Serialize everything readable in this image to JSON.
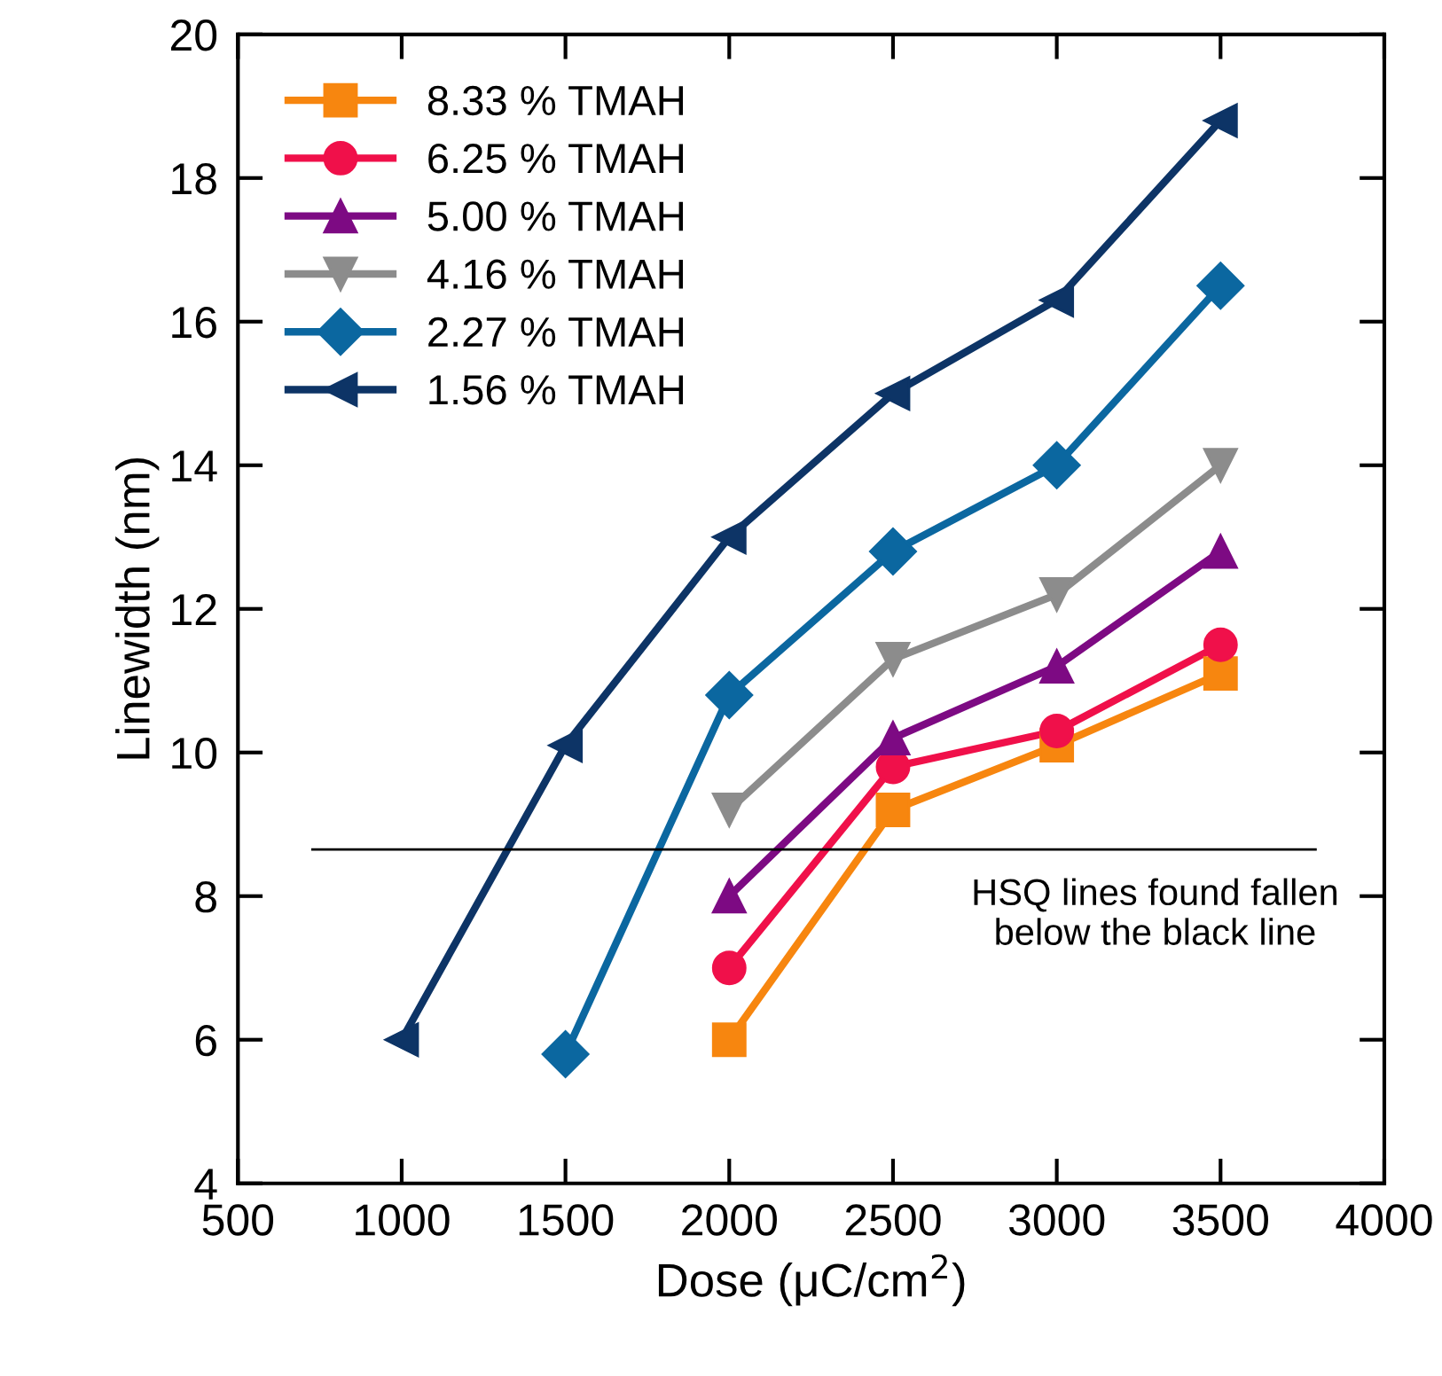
{
  "chart_data": {
    "type": "line",
    "xlabel": "Dose (μC/cm$^{2}$)",
    "ylabel": "Linewidth (nm)",
    "xlim": [
      500,
      4000
    ],
    "xticks": [
      500,
      1000,
      1500,
      2000,
      2500,
      3000,
      3500,
      4000
    ],
    "ylim": [
      4,
      20
    ],
    "yticks": [
      4,
      6,
      8,
      10,
      12,
      14,
      16,
      18,
      20
    ],
    "grid": false,
    "legend": "top left",
    "series": [
      {
        "name": "8.33 % TMAH",
        "color": "#f7860f",
        "marker": "square",
        "x": [
          2000,
          2500,
          3000,
          3500
        ],
        "values": [
          6.0,
          9.2,
          10.1,
          11.1
        ]
      },
      {
        "name": "6.25 % TMAH",
        "color": "#f0104a",
        "marker": "circle",
        "x": [
          2000,
          2500,
          3000,
          3500
        ],
        "values": [
          7.0,
          9.8,
          10.3,
          11.5
        ]
      },
      {
        "name": "5.00 % TMAH",
        "color": "#7d0a83",
        "marker": "triangle",
        "x": [
          2000,
          2500,
          3000,
          3500
        ],
        "values": [
          8.0,
          10.2,
          11.2,
          12.8
        ]
      },
      {
        "name": "4.16 % TMAH",
        "color": "#8c8c8c",
        "marker": "triangle_down",
        "x": [
          2000,
          2500,
          3000,
          3500
        ],
        "values": [
          9.2,
          11.3,
          12.2,
          14.0
        ]
      },
      {
        "name": "2.27 % TMAH",
        "color": "#0b67a0",
        "marker": "diamond",
        "x": [
          1500,
          2000,
          2500,
          3000,
          3500
        ],
        "values": [
          5.8,
          10.8,
          12.8,
          14.0,
          16.5
        ]
      },
      {
        "name": "1.56 % TMAH",
        "color": "#0d3466",
        "marker": "triangle_left",
        "x": [
          1000,
          1500,
          2000,
          2500,
          3000,
          3500
        ],
        "values": [
          6.0,
          10.1,
          13.0,
          15.0,
          16.3,
          18.8
        ]
      }
    ],
    "ref_lines": [
      {
        "axis": "y",
        "value": 8.65,
        "color": "#000000",
        "label": "HSQ lines found fallen\nbelow the black line"
      }
    ]
  }
}
